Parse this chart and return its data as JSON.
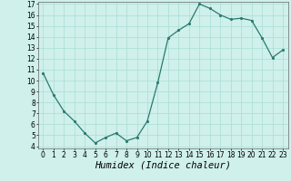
{
  "x": [
    0,
    1,
    2,
    3,
    4,
    5,
    6,
    7,
    8,
    9,
    10,
    11,
    12,
    13,
    14,
    15,
    16,
    17,
    18,
    19,
    20,
    21,
    22,
    23
  ],
  "y": [
    10.7,
    8.7,
    7.2,
    6.3,
    5.2,
    4.3,
    4.8,
    5.2,
    4.5,
    4.8,
    6.3,
    9.8,
    13.9,
    14.6,
    15.2,
    17.0,
    16.6,
    16.0,
    15.6,
    15.7,
    15.5,
    13.9,
    12.1,
    12.8
  ],
  "xlabel": "Humidex (Indice chaleur)",
  "ylim_min": 4,
  "ylim_max": 17,
  "xlim_min": -0.5,
  "xlim_max": 23.5,
  "yticks": [
    4,
    5,
    6,
    7,
    8,
    9,
    10,
    11,
    12,
    13,
    14,
    15,
    16,
    17
  ],
  "xticks": [
    0,
    1,
    2,
    3,
    4,
    5,
    6,
    7,
    8,
    9,
    10,
    11,
    12,
    13,
    14,
    15,
    16,
    17,
    18,
    19,
    20,
    21,
    22,
    23
  ],
  "line_color": "#2a7a6e",
  "bg_color": "#cff0eb",
  "grid_color": "#aaddd6",
  "tick_label_fontsize": 5.5,
  "xlabel_fontsize": 7.5,
  "xlabel_fontstyle": "italic"
}
